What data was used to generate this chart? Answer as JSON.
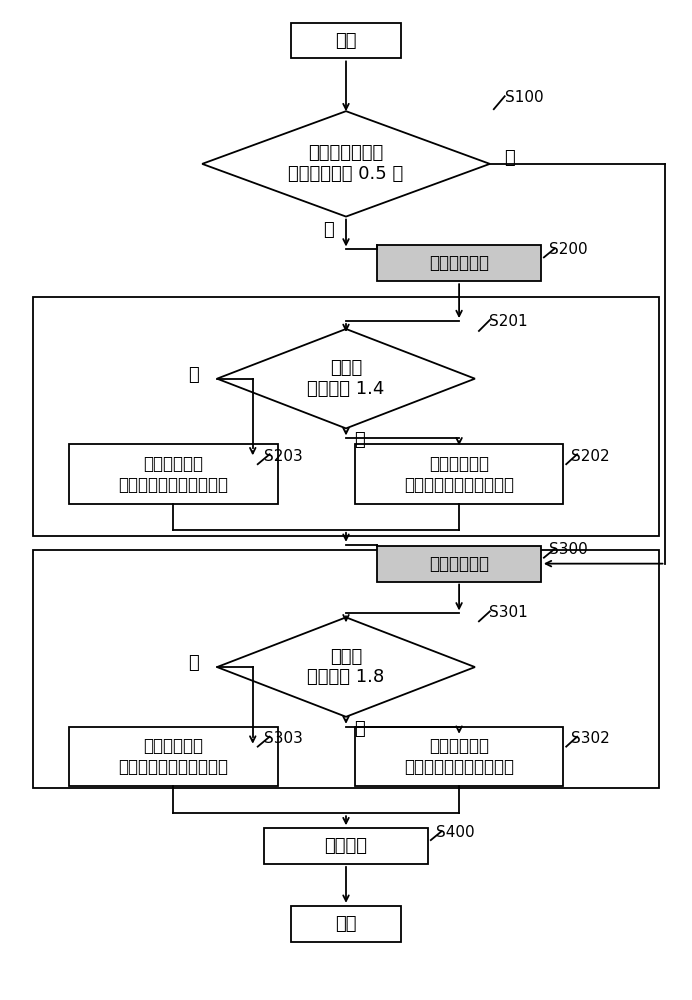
{
  "bg_color": "#ffffff",
  "line_color": "#000000",
  "lw": 1.3,
  "start_text": "开始",
  "end_text": "结束",
  "s100_text": "辊身与坯料长度\n差值是否大于 0.5 米",
  "s200_text": "成形轧制阶段",
  "s201_text": "展宽比\n是否小于 1.4",
  "s202_text": "成形轧制采用\n薄边展宽轧制法进行轧制",
  "s203_text": "成形轧制采用\n厚边展宽轧制法进行轧制",
  "s300_text": "展宽轧制阶段",
  "s301_text": "展宽比\n是否大于 1.8",
  "s302_text": "成形轧制采用\n薄边展宽轧制法进行轧制",
  "s303_text": "展宽轧制采用\n厚边展宽轧制法进行轧制",
  "s400_text": "精轧阶段",
  "yes_text": "是",
  "no_text": "否",
  "shaded_fill": "#c8c8c8"
}
